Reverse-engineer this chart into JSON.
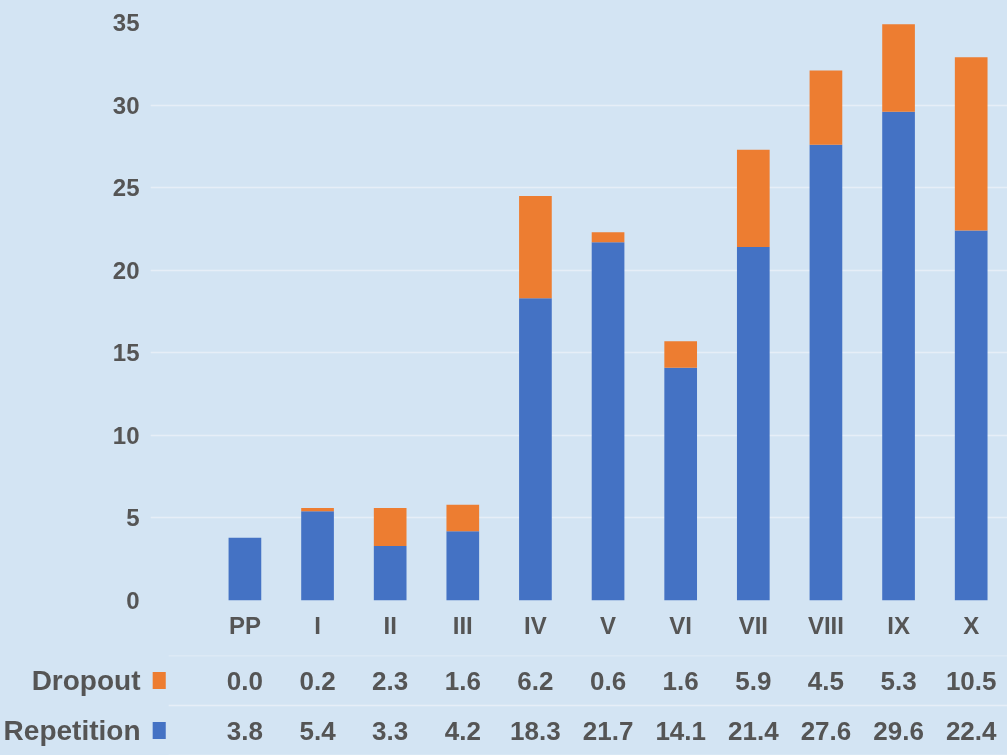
{
  "chart_data": {
    "type": "bar",
    "stacked": true,
    "categories": [
      "PP",
      "I",
      "II",
      "III",
      "IV",
      "V",
      "VI",
      "VII",
      "VIII",
      "IX",
      "X"
    ],
    "series": [
      {
        "name": "Repetition",
        "color": "#4472c4",
        "values": [
          3.8,
          5.4,
          3.3,
          4.2,
          18.3,
          21.7,
          14.1,
          21.4,
          27.6,
          29.6,
          22.4
        ],
        "value_labels": [
          "3.8",
          "5.4",
          "3.3",
          "4.2",
          "18.3",
          "21.7",
          "14.1",
          "21.4",
          "27.6",
          "29.6",
          "22.4"
        ]
      },
      {
        "name": "Dropout",
        "color": "#ed7d31",
        "values": [
          0.0,
          0.2,
          2.3,
          1.6,
          6.2,
          0.6,
          1.6,
          5.9,
          4.5,
          5.3,
          10.5
        ],
        "value_labels": [
          "0.0",
          "0.2",
          "2.3",
          "1.6",
          "6.2",
          "0.6",
          "1.6",
          "5.9",
          "4.5",
          "5.3",
          "10.5"
        ]
      }
    ],
    "ylim": [
      0,
      35
    ],
    "yticks": [
      0,
      5,
      10,
      15,
      20,
      25,
      30,
      35
    ],
    "grid": "y",
    "legend": "bottom"
  }
}
